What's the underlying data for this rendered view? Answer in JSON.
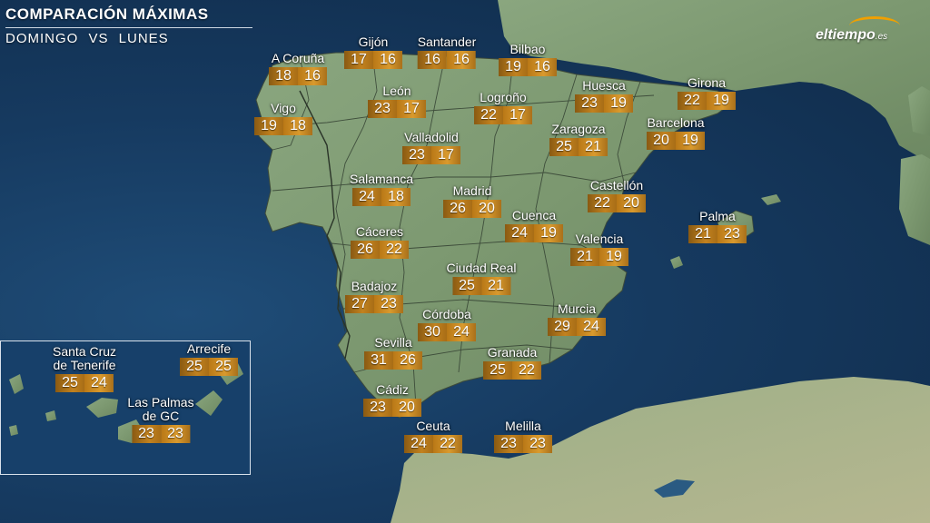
{
  "header": {
    "title": "COMPARACIÓN MÁXIMAS",
    "subtitle": "DOMINGO VS LUNES"
  },
  "brand": {
    "name": "eltiempo",
    "suffix": ".es",
    "accent_color": "#f0a000"
  },
  "colors": {
    "sea": "#163a60",
    "land": "#7f9b74",
    "sunday_box": "#a86d16",
    "monday_box": "#d99a2e"
  },
  "cities": [
    {
      "name": "A Coruña",
      "sunday": "18",
      "monday": "16"
    },
    {
      "name": "Gijón",
      "sunday": "17",
      "monday": "16"
    },
    {
      "name": "Santander",
      "sunday": "16",
      "monday": "16"
    },
    {
      "name": "Bilbao",
      "sunday": "19",
      "monday": "16"
    },
    {
      "name": "Vigo",
      "sunday": "19",
      "monday": "18"
    },
    {
      "name": "León",
      "sunday": "23",
      "monday": "17"
    },
    {
      "name": "Logroño",
      "sunday": "22",
      "monday": "17"
    },
    {
      "name": "Huesca",
      "sunday": "23",
      "monday": "19"
    },
    {
      "name": "Girona",
      "sunday": "22",
      "monday": "19"
    },
    {
      "name": "Valladolid",
      "sunday": "23",
      "monday": "17"
    },
    {
      "name": "Zaragoza",
      "sunday": "25",
      "monday": "21"
    },
    {
      "name": "Barcelona",
      "sunday": "20",
      "monday": "19"
    },
    {
      "name": "Salamanca",
      "sunday": "24",
      "monday": "18"
    },
    {
      "name": "Madrid",
      "sunday": "26",
      "monday": "20"
    },
    {
      "name": "Castellón",
      "sunday": "22",
      "monday": "20"
    },
    {
      "name": "Cuenca",
      "sunday": "24",
      "monday": "19"
    },
    {
      "name": "Palma",
      "sunday": "21",
      "monday": "23"
    },
    {
      "name": "Cáceres",
      "sunday": "26",
      "monday": "22"
    },
    {
      "name": "Valencia",
      "sunday": "21",
      "monday": "19"
    },
    {
      "name": "Ciudad Real",
      "sunday": "25",
      "monday": "21"
    },
    {
      "name": "Badajoz",
      "sunday": "27",
      "monday": "23"
    },
    {
      "name": "Córdoba",
      "sunday": "30",
      "monday": "24"
    },
    {
      "name": "Murcia",
      "sunday": "29",
      "monday": "24"
    },
    {
      "name": "Sevilla",
      "sunday": "31",
      "monday": "26"
    },
    {
      "name": "Granada",
      "sunday": "25",
      "monday": "22"
    },
    {
      "name": "Cádiz",
      "sunday": "23",
      "monday": "20"
    },
    {
      "name": "Ceuta",
      "sunday": "24",
      "monday": "22"
    },
    {
      "name": "Melilla",
      "sunday": "23",
      "monday": "23"
    },
    {
      "name": "Santa Cruz\nde Tenerife",
      "sunday": "25",
      "monday": "24"
    },
    {
      "name": "Arrecife",
      "sunday": "25",
      "monday": "25"
    },
    {
      "name": "Las Palmas\nde GC",
      "sunday": "23",
      "monday": "23"
    }
  ]
}
